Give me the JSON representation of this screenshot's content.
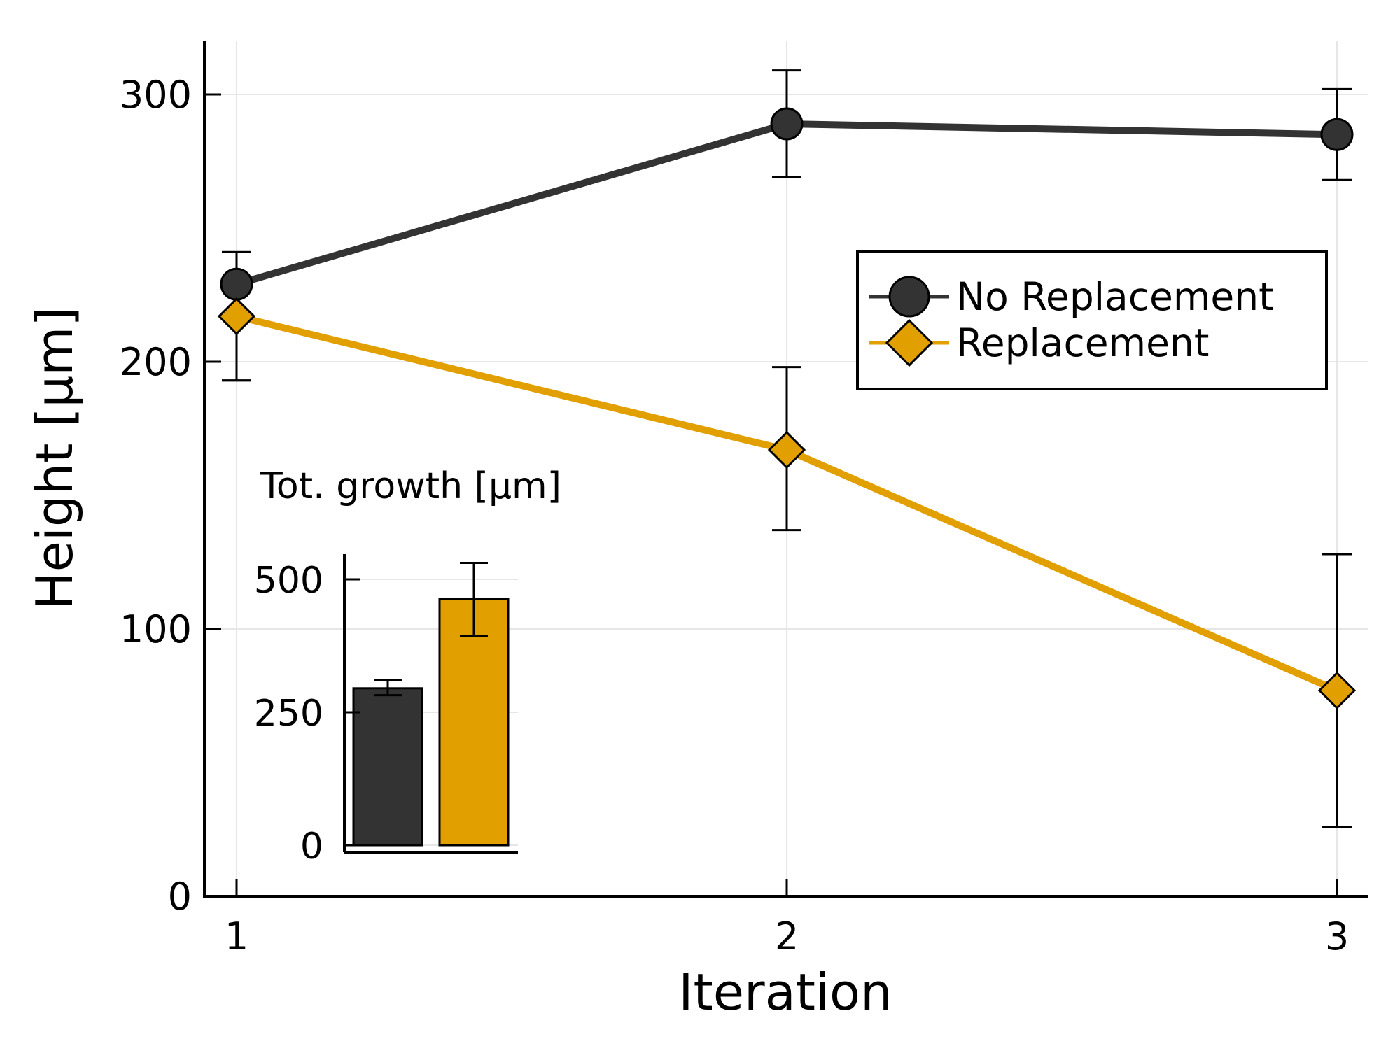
{
  "chart_data": [
    {
      "type": "line",
      "xlabel": "Iteration",
      "ylabel": "Height [µm]",
      "x": [
        1,
        2,
        3
      ],
      "xticks": [
        "1",
        "2",
        "3"
      ],
      "yticks": [
        "0",
        "100",
        "200",
        "300"
      ],
      "ylim": [
        0,
        320
      ],
      "grid": true,
      "legend": "right",
      "series": [
        {
          "name": "No Replacement",
          "marker": "circle",
          "color": "#333333",
          "values": [
            229,
            289,
            285
          ],
          "errors": [
            [
              193,
              241
            ],
            [
              269,
              309
            ],
            [
              268,
              302
            ]
          ]
        },
        {
          "name": "Replacement",
          "marker": "diamond",
          "color": "#e29f00",
          "values": [
            217,
            167,
            77
          ],
          "errors": [
            [
              193,
              241
            ],
            [
              137,
              198
            ],
            [
              26,
              128
            ]
          ]
        }
      ]
    },
    {
      "type": "bar",
      "title": "Tot. growth [µm]",
      "categories": [
        "No Replacement",
        "Replacement"
      ],
      "values": [
        295,
        463
      ],
      "errors": [
        [
          282,
          310
        ],
        [
          394,
          531
        ]
      ],
      "colors": [
        "#333333",
        "#e29f00"
      ],
      "yticks": [
        "0",
        "250",
        "500"
      ],
      "ylim": [
        -15,
        540
      ],
      "grid": true
    }
  ]
}
